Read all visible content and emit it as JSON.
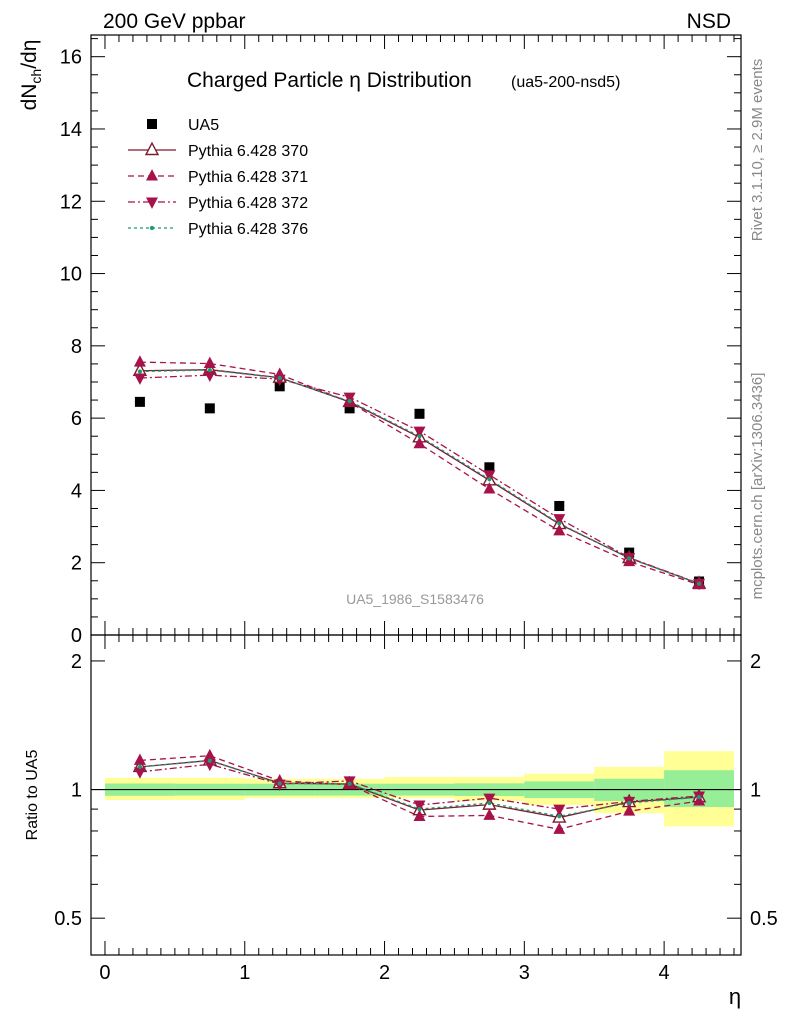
{
  "header": {
    "left": "200 GeV ppbar",
    "right": "NSD"
  },
  "side_labels": {
    "rivet": "Rivet 3.1.10, ≥ 2.9M events",
    "mcplots": "mcplots.cern.ch [arXiv:1306.3436]"
  },
  "chart_data": [
    {
      "type": "scatter",
      "title": "Charged Particle η Distribution",
      "subtitle": "(ua5-200-nsd5)",
      "ylabel": "dN_ch/dη",
      "xlabel": "",
      "watermark": "UA5_1986_S1583476",
      "xlim": [
        -0.1,
        4.55
      ],
      "ylim": [
        0,
        16.6
      ],
      "yticks": [
        0,
        2,
        4,
        6,
        8,
        10,
        12,
        14,
        16
      ],
      "x": [
        0.25,
        0.75,
        1.25,
        1.75,
        2.25,
        2.75,
        3.25,
        3.75,
        4.25
      ],
      "series": [
        {
          "name": "UA5",
          "color": "#000000",
          "marker": "square",
          "values": [
            6.45,
            6.27,
            6.88,
            6.27,
            6.12,
            4.64,
            3.57,
            2.28,
            1.48
          ]
        },
        {
          "name": "Pythia 6.428 370",
          "color": "#7a1b2e",
          "marker": "open-triangle-up",
          "line": "solid",
          "values": [
            7.31,
            7.34,
            7.12,
            6.45,
            5.47,
            4.28,
            3.07,
            2.13,
            1.42
          ]
        },
        {
          "name": "Pythia 6.428 371",
          "color": "#a8124a",
          "marker": "triangle-up",
          "line": "dashed",
          "values": [
            7.55,
            7.51,
            7.21,
            6.44,
            5.29,
            4.04,
            2.88,
            2.03,
            1.39
          ]
        },
        {
          "name": "Pythia 6.428 372",
          "color": "#a8124a",
          "marker": "triangle-down",
          "line": "dashdot",
          "values": [
            7.11,
            7.19,
            7.08,
            6.58,
            5.64,
            4.43,
            3.22,
            2.14,
            1.43
          ]
        },
        {
          "name": "Pythia 6.428 376",
          "color": "#1f9a6e",
          "marker": "dot",
          "line": "dashdotted",
          "values": [
            7.29,
            7.33,
            7.11,
            6.47,
            5.5,
            4.31,
            3.09,
            2.12,
            1.42
          ]
        }
      ]
    },
    {
      "type": "line",
      "ylabel": "Ratio to UA5",
      "xlabel": "η",
      "xlim": [
        -0.1,
        4.55
      ],
      "ylim": [
        0.41,
        2.3
      ],
      "log_y": true,
      "yticks": [
        0.5,
        1,
        2
      ],
      "xticks": [
        0,
        1,
        2,
        3,
        4
      ],
      "bands": {
        "edges": [
          0,
          0.5,
          1,
          1.5,
          2,
          2.5,
          3,
          3.5,
          4,
          4.5
        ],
        "stat": [
          [
            0.967,
            1.033
          ],
          [
            0.968,
            1.032
          ],
          [
            0.968,
            1.032
          ],
          [
            0.968,
            1.032
          ],
          [
            0.968,
            1.032
          ],
          [
            0.966,
            1.034
          ],
          [
            0.955,
            1.045
          ],
          [
            0.94,
            1.06
          ],
          [
            0.91,
            1.11
          ]
        ],
        "total": [
          [
            0.945,
            1.065
          ],
          [
            0.945,
            1.065
          ],
          [
            0.955,
            1.06
          ],
          [
            0.955,
            1.06
          ],
          [
            0.955,
            1.07
          ],
          [
            0.94,
            1.07
          ],
          [
            0.92,
            1.09
          ],
          [
            0.88,
            1.13
          ],
          [
            0.82,
            1.23
          ]
        ],
        "stat_color": "#96ef96",
        "total_color": "#ffff96"
      },
      "series": [
        {
          "name": "Pythia 6.428 370",
          "color": "#7a1b2e",
          "marker": "open-triangle-up",
          "line": "solid",
          "values": [
            1.13,
            1.17,
            1.035,
            1.03,
            0.895,
            0.922,
            0.86,
            0.935,
            0.96
          ]
        },
        {
          "name": "Pythia 6.428 371",
          "color": "#a8124a",
          "marker": "triangle-up",
          "line": "dashed",
          "values": [
            1.17,
            1.2,
            1.048,
            1.027,
            0.865,
            0.87,
            0.807,
            0.89,
            0.94
          ]
        },
        {
          "name": "Pythia 6.428 372",
          "color": "#a8124a",
          "marker": "triangle-down",
          "line": "dashdot",
          "values": [
            1.1,
            1.146,
            1.03,
            1.048,
            0.92,
            0.955,
            0.9,
            0.938,
            0.966
          ]
        },
        {
          "name": "Pythia 6.428 376",
          "color": "#1f9a6e",
          "marker": "dot",
          "line": "dashdotted",
          "values": [
            1.13,
            1.168,
            1.033,
            1.032,
            0.9,
            0.93,
            0.866,
            0.93,
            0.96
          ]
        }
      ]
    }
  ]
}
